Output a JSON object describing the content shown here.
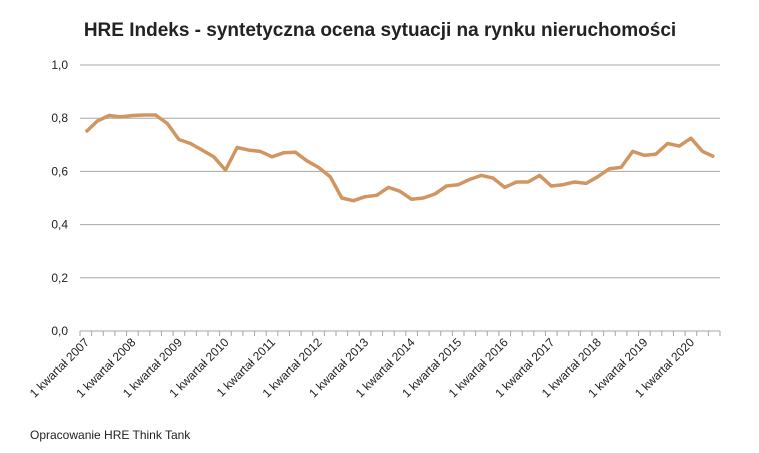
{
  "chart_data": {
    "type": "line",
    "title": "HRE Indeks - syntetyczna ocena sytuacji na rynku nieruchomości",
    "source": "Opracowanie HRE Think Tank",
    "categories": [
      "1 kwartał 2007",
      null,
      null,
      null,
      "1 kwartał 2008",
      null,
      null,
      null,
      "1 kwartał 2009",
      null,
      null,
      null,
      "1 kwartał 2010",
      null,
      null,
      null,
      "1 kwartał 2011",
      null,
      null,
      null,
      "1 kwartał 2012",
      null,
      null,
      null,
      "1 kwartał 2013",
      null,
      null,
      null,
      "1 kwartał 2014",
      null,
      null,
      null,
      "1 kwartał 2015",
      null,
      null,
      null,
      "1 kwartał 2016",
      null,
      null,
      null,
      "1 kwartał 2017",
      null,
      null,
      null,
      "1 kwartał 2018",
      null,
      null,
      null,
      "1 kwartał 2019",
      null,
      null,
      null,
      "1 kwartał 2020",
      null,
      null
    ],
    "series": [
      {
        "name": "HRE Indeks",
        "color": "#d09560",
        "values": [
          0.748,
          0.79,
          0.81,
          0.805,
          0.81,
          0.812,
          0.812,
          0.78,
          0.72,
          0.705,
          0.68,
          0.655,
          0.605,
          0.69,
          0.68,
          0.675,
          0.655,
          0.67,
          0.672,
          0.64,
          0.615,
          0.58,
          0.5,
          0.49,
          0.505,
          0.51,
          0.54,
          0.525,
          0.495,
          0.5,
          0.515,
          0.545,
          0.55,
          0.57,
          0.585,
          0.575,
          0.54,
          0.56,
          0.56,
          0.585,
          0.545,
          0.55,
          0.56,
          0.555,
          0.58,
          0.61,
          0.615,
          0.675,
          0.66,
          0.665,
          0.705,
          0.695,
          0.725,
          0.675,
          0.655
        ]
      }
    ],
    "ylim": [
      0,
      1
    ],
    "yticks": [
      {
        "value": 0,
        "label": "0,0"
      },
      {
        "value": 0.2,
        "label": "0,2"
      },
      {
        "value": 0.4,
        "label": "0,4"
      },
      {
        "value": 0.6,
        "label": "0,6"
      },
      {
        "value": 0.8,
        "label": "0,8"
      },
      {
        "value": 1,
        "label": "1,0"
      }
    ],
    "grid": true
  }
}
